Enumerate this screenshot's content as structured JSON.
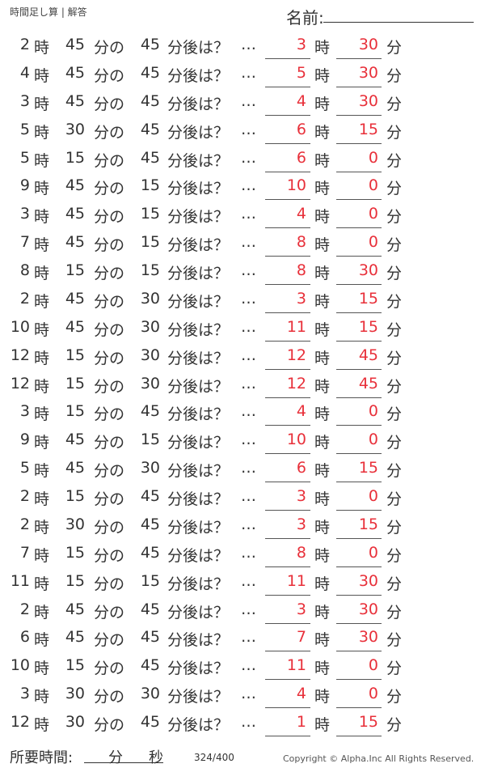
{
  "header": {
    "title": "時間足し算 | 解答",
    "name_label": "名前:"
  },
  "labels": {
    "hour": "時",
    "min_of": "分の",
    "min_after": "分後は？",
    "dots": "…",
    "min": "分"
  },
  "problems": [
    {
      "h": "2",
      "m": "45",
      "add": "45",
      "ah": "3",
      "am": "30"
    },
    {
      "h": "4",
      "m": "45",
      "add": "45",
      "ah": "5",
      "am": "30"
    },
    {
      "h": "3",
      "m": "45",
      "add": "45",
      "ah": "4",
      "am": "30"
    },
    {
      "h": "5",
      "m": "30",
      "add": "45",
      "ah": "6",
      "am": "15"
    },
    {
      "h": "5",
      "m": "15",
      "add": "45",
      "ah": "6",
      "am": "0"
    },
    {
      "h": "9",
      "m": "45",
      "add": "15",
      "ah": "10",
      "am": "0"
    },
    {
      "h": "3",
      "m": "45",
      "add": "15",
      "ah": "4",
      "am": "0"
    },
    {
      "h": "7",
      "m": "45",
      "add": "15",
      "ah": "8",
      "am": "0"
    },
    {
      "h": "8",
      "m": "15",
      "add": "15",
      "ah": "8",
      "am": "30"
    },
    {
      "h": "2",
      "m": "45",
      "add": "30",
      "ah": "3",
      "am": "15"
    },
    {
      "h": "10",
      "m": "45",
      "add": "30",
      "ah": "11",
      "am": "15"
    },
    {
      "h": "12",
      "m": "15",
      "add": "30",
      "ah": "12",
      "am": "45"
    },
    {
      "h": "12",
      "m": "15",
      "add": "30",
      "ah": "12",
      "am": "45"
    },
    {
      "h": "3",
      "m": "15",
      "add": "45",
      "ah": "4",
      "am": "0"
    },
    {
      "h": "9",
      "m": "45",
      "add": "15",
      "ah": "10",
      "am": "0"
    },
    {
      "h": "5",
      "m": "45",
      "add": "30",
      "ah": "6",
      "am": "15"
    },
    {
      "h": "2",
      "m": "15",
      "add": "45",
      "ah": "3",
      "am": "0"
    },
    {
      "h": "2",
      "m": "30",
      "add": "45",
      "ah": "3",
      "am": "15"
    },
    {
      "h": "7",
      "m": "15",
      "add": "45",
      "ah": "8",
      "am": "0"
    },
    {
      "h": "11",
      "m": "15",
      "add": "15",
      "ah": "11",
      "am": "30"
    },
    {
      "h": "2",
      "m": "45",
      "add": "45",
      "ah": "3",
      "am": "30"
    },
    {
      "h": "6",
      "m": "45",
      "add": "45",
      "ah": "7",
      "am": "30"
    },
    {
      "h": "10",
      "m": "15",
      "add": "45",
      "ah": "11",
      "am": "0"
    },
    {
      "h": "3",
      "m": "30",
      "add": "30",
      "ah": "4",
      "am": "0"
    },
    {
      "h": "12",
      "m": "30",
      "add": "45",
      "ah": "1",
      "am": "15"
    }
  ],
  "footer": {
    "required_label": "所要時間:",
    "min": "分",
    "sec": "秒",
    "page": "324/400",
    "copyright": "Copyright ©  Alpha.Inc All Rights Reserved."
  },
  "colors": {
    "answer": "#e8303a",
    "text": "#333333"
  }
}
